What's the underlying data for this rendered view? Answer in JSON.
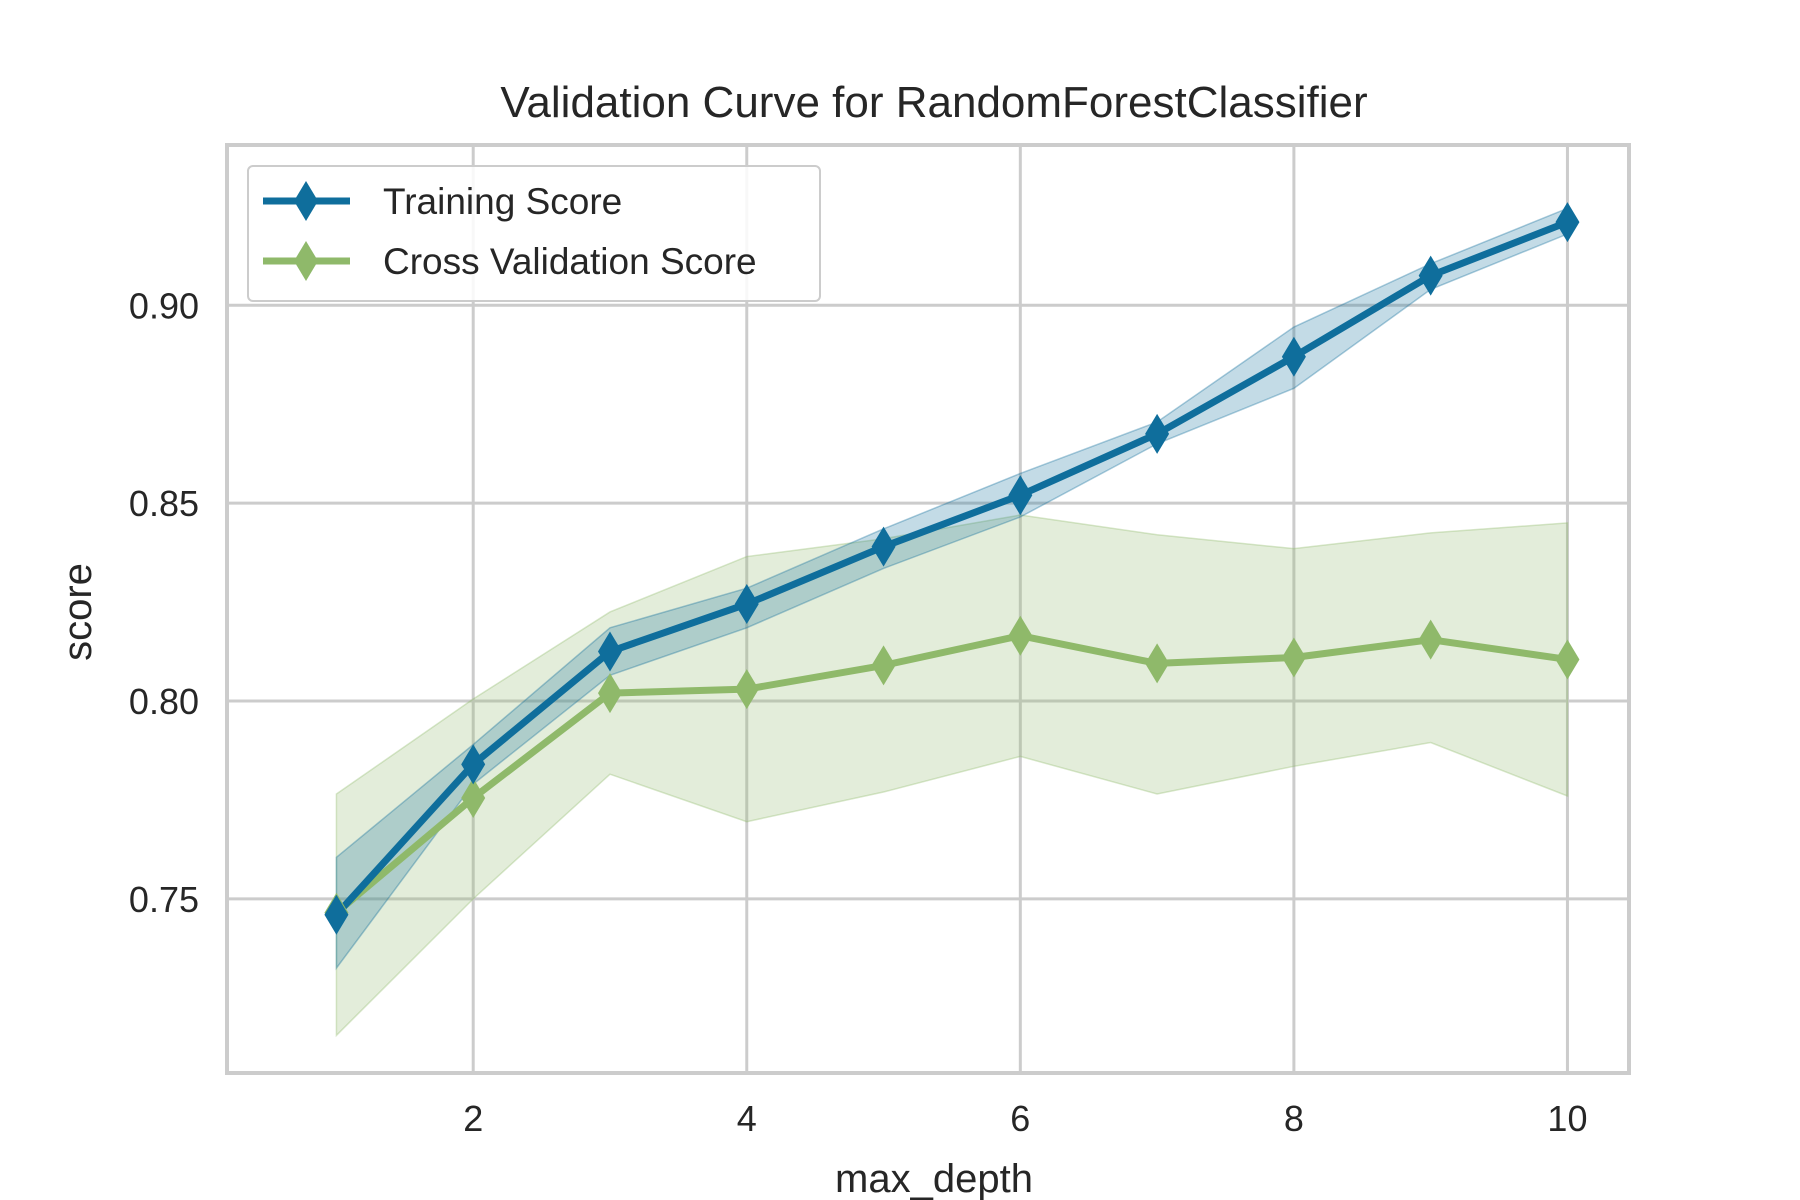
{
  "chart_data": {
    "type": "line",
    "title": "Validation Curve for RandomForestClassifier",
    "xlabel": "max_depth",
    "ylabel": "score",
    "x": [
      1,
      2,
      3,
      4,
      5,
      6,
      7,
      8,
      9,
      10
    ],
    "xlim": [
      0.2,
      10.45
    ],
    "ylim": [
      0.706,
      0.9405
    ],
    "xticks": [
      2,
      4,
      6,
      8,
      10
    ],
    "yticks": [
      0.75,
      0.8,
      0.85,
      0.9
    ],
    "ytick_labels": [
      "0.75",
      "0.80",
      "0.85",
      "0.90"
    ],
    "grid": true,
    "legend_position": "top-left",
    "series": [
      {
        "name": "Training Score",
        "color": "#0f6e9c",
        "fill_color": "#0f6e9c",
        "marker": "diamond",
        "values": [
          0.746,
          0.784,
          0.8125,
          0.8245,
          0.839,
          0.852,
          0.8675,
          0.887,
          0.9075,
          0.921
        ],
        "lower": [
          0.7325,
          0.779,
          0.8065,
          0.8185,
          0.8335,
          0.8465,
          0.865,
          0.879,
          0.904,
          0.918
        ],
        "upper": [
          0.7605,
          0.789,
          0.8185,
          0.8285,
          0.8435,
          0.8575,
          0.8705,
          0.8945,
          0.9105,
          0.9245
        ]
      },
      {
        "name": "Cross Validation Score",
        "color": "#8fb96a",
        "fill_color": "#8fb96a",
        "marker": "diamond",
        "values": [
          0.7465,
          0.7755,
          0.802,
          0.803,
          0.809,
          0.8165,
          0.8095,
          0.811,
          0.8155,
          0.8105
        ],
        "lower": [
          0.7155,
          0.75,
          0.7815,
          0.7695,
          0.777,
          0.786,
          0.7765,
          0.7835,
          0.7895,
          0.776
        ],
        "upper": [
          0.7765,
          0.8005,
          0.8225,
          0.8365,
          0.841,
          0.847,
          0.842,
          0.8385,
          0.8425,
          0.845
        ]
      }
    ]
  }
}
